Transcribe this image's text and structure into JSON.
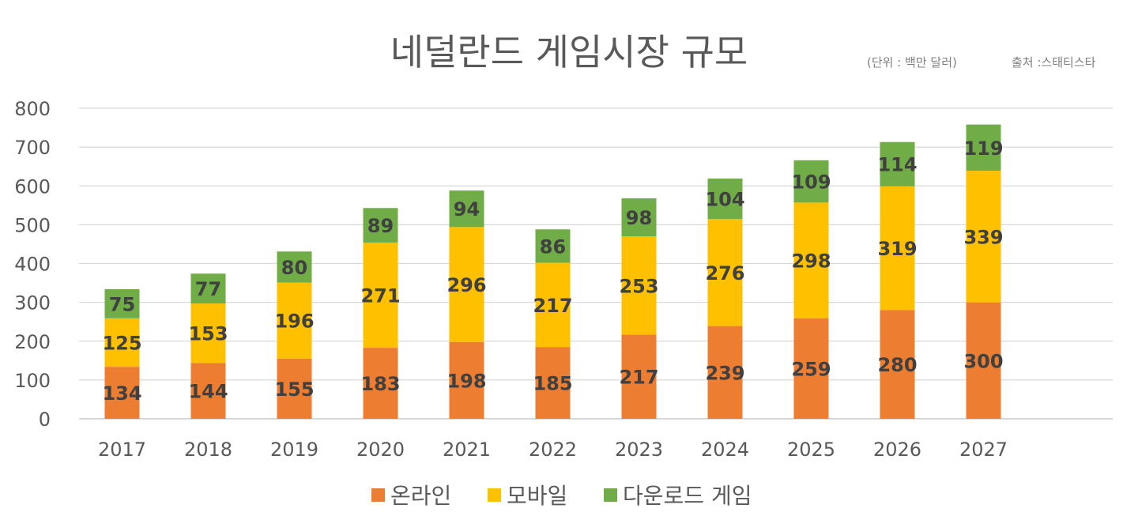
{
  "chart_data": {
    "type": "bar",
    "stacked": true,
    "title": "네덜란드 게임시장 규모",
    "unit_note": "(단위 : 백만 달러)",
    "source_note": "출처 :스태티스타",
    "xlabel": "",
    "ylabel": "",
    "categories": [
      "2017",
      "2018",
      "2019",
      "2020",
      "2021",
      "2022",
      "2023",
      "2024",
      "2025",
      "2026",
      "2027"
    ],
    "series": [
      {
        "name": "온라인",
        "color": "#ED7D31",
        "values": [
          134,
          144,
          155,
          183,
          198,
          185,
          217,
          239,
          259,
          280,
          300
        ]
      },
      {
        "name": "모바일",
        "color": "#FFC000",
        "values": [
          125,
          153,
          196,
          271,
          296,
          217,
          253,
          276,
          298,
          319,
          339
        ]
      },
      {
        "name": "다운로드 게임",
        "color": "#70AD47",
        "values": [
          75,
          77,
          80,
          89,
          94,
          86,
          98,
          104,
          109,
          114,
          119
        ]
      }
    ],
    "ylim": [
      0,
      800
    ],
    "yticks": [
      0,
      100,
      200,
      300,
      400,
      500,
      600,
      700,
      800
    ],
    "grid": true,
    "legend": "bottom",
    "data_labels": true
  }
}
